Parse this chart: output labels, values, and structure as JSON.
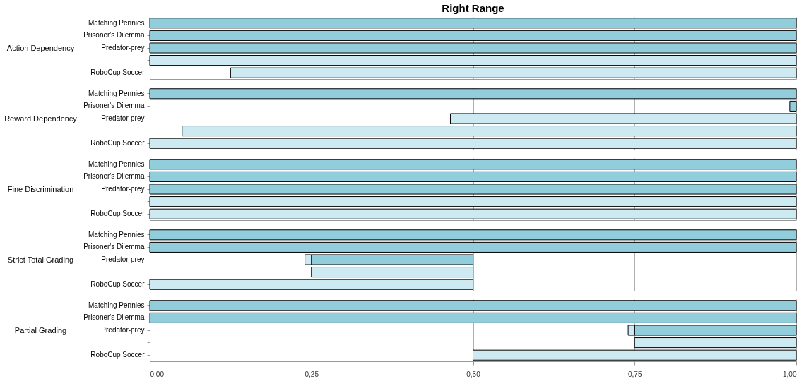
{
  "chart_data": [
    {
      "type": "bar",
      "orientation": "horizontal",
      "title": "Right Range",
      "ylabel": "Action Dependency",
      "categories": [
        "Matching Pennies",
        "Prisoner's Dilemma",
        "Predator-prey",
        null,
        "RoboCup Soccer"
      ],
      "series": [
        {
          "color": "#92cddc",
          "base": [
            0,
            0,
            0,
            null,
            null
          ],
          "values": [
            1,
            1,
            1,
            null,
            null
          ]
        },
        {
          "color": "#cde9f1",
          "base": [
            null,
            null,
            null,
            0,
            0.125
          ],
          "values": [
            null,
            null,
            null,
            1,
            0.875
          ]
        }
      ],
      "xlim": [
        0,
        1
      ],
      "xticks": [
        {
          "value": 0,
          "label": null
        },
        {
          "value": 0.25,
          "label": null
        },
        {
          "value": 0.5,
          "label": null
        },
        {
          "value": 0.75,
          "label": null
        },
        {
          "value": 1,
          "label": null
        }
      ],
      "grid": "x",
      "tick_labels": "y"
    },
    {
      "type": "bar",
      "orientation": "horizontal",
      "ylabel": "Reward Dependency",
      "categories": [
        "Matching Pennies",
        "Prisoner's Dilemma",
        "Predator-prey",
        null,
        "RoboCup Soccer"
      ],
      "series": [
        {
          "color": "#92cddc",
          "base": [
            0,
            0.99,
            null,
            null,
            null
          ],
          "values": [
            1,
            0.01,
            null,
            null,
            null
          ]
        },
        {
          "color": "#cde9f1",
          "base": [
            null,
            null,
            0.465,
            0.05,
            0
          ],
          "values": [
            null,
            null,
            0.535,
            0.95,
            1
          ]
        }
      ],
      "xlim": [
        0,
        1
      ],
      "xticks": [
        {
          "value": 0,
          "label": null
        },
        {
          "value": 0.25,
          "label": null
        },
        {
          "value": 0.5,
          "label": null
        },
        {
          "value": 0.75,
          "label": null
        },
        {
          "value": 1,
          "label": null
        }
      ],
      "grid": "x",
      "tick_labels": "y"
    },
    {
      "type": "bar",
      "orientation": "horizontal",
      "ylabel": "Fine Discrimination",
      "categories": [
        "Matching Pennies",
        "Prisoner's Dilemma",
        "Predator-prey",
        null,
        "RoboCup Soccer"
      ],
      "series": [
        {
          "color": "#92cddc",
          "base": [
            0,
            0,
            0,
            null,
            null
          ],
          "values": [
            1,
            1,
            1,
            null,
            null
          ]
        },
        {
          "color": "#cde9f1",
          "base": [
            null,
            null,
            null,
            0,
            0
          ],
          "values": [
            null,
            null,
            null,
            1,
            1
          ]
        }
      ],
      "xlim": [
        0,
        1
      ],
      "xticks": [
        {
          "value": 0,
          "label": null
        },
        {
          "value": 0.25,
          "label": null
        },
        {
          "value": 0.5,
          "label": null
        },
        {
          "value": 0.75,
          "label": null
        },
        {
          "value": 1,
          "label": null
        }
      ],
      "grid": "x",
      "tick_labels": "y"
    },
    {
      "type": "bar",
      "orientation": "horizontal",
      "ylabel": "Strict Total Grading",
      "categories": [
        "Matching Pennies",
        "Prisoner's Dilemma",
        "Predator-prey",
        null,
        "RoboCup Soccer"
      ],
      "series": [
        {
          "color": "#92cddc",
          "base": [
            0,
            0,
            0.25,
            null,
            null
          ],
          "values": [
            1,
            1,
            0.25,
            null,
            null
          ]
        },
        {
          "color": "#cde9f1",
          "base": [
            null,
            null,
            0.24,
            0.25,
            0
          ],
          "values": [
            null,
            null,
            0.01,
            0.25,
            0.5
          ]
        }
      ],
      "xlim": [
        0,
        1
      ],
      "xticks": [
        {
          "value": 0,
          "label": null
        },
        {
          "value": 0.25,
          "label": null
        },
        {
          "value": 0.5,
          "label": null
        },
        {
          "value": 0.75,
          "label": null
        },
        {
          "value": 1,
          "label": null
        }
      ],
      "grid": "x",
      "tick_labels": "y"
    },
    {
      "type": "bar",
      "orientation": "horizontal",
      "ylabel": "Partial Grading",
      "categories": [
        "Matching Pennies",
        "Prisoner's Dilemma",
        "Predator-prey",
        null,
        "RoboCup Soccer"
      ],
      "series": [
        {
          "color": "#92cddc",
          "base": [
            0,
            0,
            0.75,
            null,
            null
          ],
          "values": [
            1,
            1,
            0.25,
            null,
            null
          ]
        },
        {
          "color": "#cde9f1",
          "base": [
            null,
            null,
            0.74,
            0.75,
            0.5
          ],
          "values": [
            null,
            null,
            0.01,
            0.25,
            0.5
          ]
        }
      ],
      "xlim": [
        0,
        1
      ],
      "xticks": [
        {
          "value": 0,
          "label": "0,00"
        },
        {
          "value": 0.25,
          "label": "0,25"
        },
        {
          "value": 0.5,
          "label": "0,50"
        },
        {
          "value": 0.75,
          "label": "0,75"
        },
        {
          "value": 1,
          "label": "1,00"
        }
      ],
      "grid": "x"
    }
  ]
}
